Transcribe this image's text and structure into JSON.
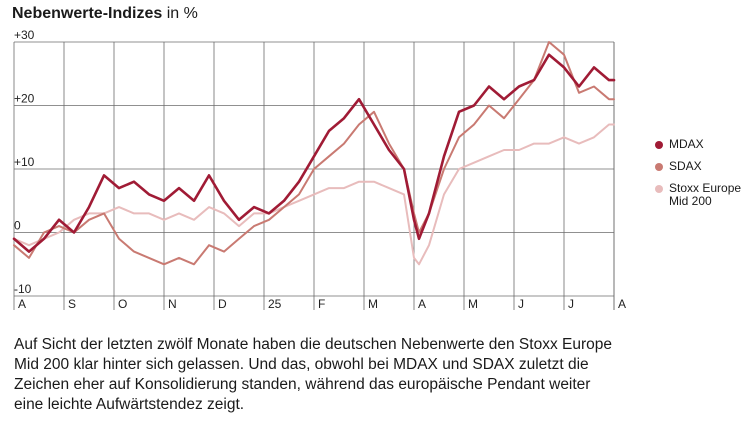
{
  "title": {
    "bold": "Nebenwerte-Indizes",
    "unit": "in %"
  },
  "caption": "Auf Sicht der letzten zwölf Monate haben die deutschen Nebenwerte den Stoxx Europe Mid 200 klar hinter sich gelassen. Und das, obwohl bei MDAX und SDAX zuletzt die Zeichen eher auf Konsolidierung standen, während das europäische Pendant weiter eine leichte Aufwärtstendez zeigt.",
  "chart_data": {
    "type": "line",
    "title": "Nebenwerte-Indizes in %",
    "xlabel": "",
    "ylabel": "",
    "x_range": [
      0,
      12
    ],
    "x_tick_labels": [
      "A",
      "S",
      "O",
      "N",
      "D",
      "25",
      "F",
      "M",
      "A",
      "M",
      "J",
      "J",
      "A"
    ],
    "ylim": [
      -10,
      30
    ],
    "y_ticks": [
      -10,
      0,
      10,
      20,
      30
    ],
    "y_tick_labels": [
      "-10",
      "0",
      "+10",
      "+20",
      "+30"
    ],
    "grid": true,
    "legend_position": "right",
    "series": [
      {
        "name": "MDAX",
        "color": "#a01b35",
        "x": [
          0,
          0.3,
          0.6,
          0.9,
          1.2,
          1.5,
          1.8,
          2.1,
          2.4,
          2.7,
          3.0,
          3.3,
          3.6,
          3.9,
          4.2,
          4.5,
          4.8,
          5.1,
          5.4,
          5.7,
          6.0,
          6.3,
          6.6,
          6.9,
          7.2,
          7.5,
          7.8,
          8.0,
          8.1,
          8.3,
          8.6,
          8.9,
          9.2,
          9.5,
          9.8,
          10.1,
          10.4,
          10.7,
          11.0,
          11.3,
          11.6,
          11.9,
          12.0
        ],
        "values": [
          -1,
          -3,
          -1,
          2,
          0,
          4,
          9,
          7,
          8,
          6,
          5,
          7,
          5,
          9,
          5,
          2,
          4,
          3,
          5,
          8,
          12,
          16,
          18,
          21,
          17,
          13,
          10,
          2,
          -1,
          3,
          12,
          19,
          20,
          23,
          21,
          23,
          24,
          28,
          26,
          23,
          26,
          24,
          24
        ]
      },
      {
        "name": "SDAX",
        "color": "#c97a72",
        "x": [
          0,
          0.3,
          0.6,
          0.9,
          1.2,
          1.5,
          1.8,
          2.1,
          2.4,
          2.7,
          3.0,
          3.3,
          3.6,
          3.9,
          4.2,
          4.5,
          4.8,
          5.1,
          5.4,
          5.7,
          6.0,
          6.3,
          6.6,
          6.9,
          7.2,
          7.5,
          7.8,
          8.0,
          8.1,
          8.3,
          8.6,
          8.9,
          9.2,
          9.5,
          9.8,
          10.1,
          10.4,
          10.7,
          11.0,
          11.3,
          11.6,
          11.9,
          12.0
        ],
        "values": [
          -2,
          -4,
          0,
          1,
          0,
          2,
          3,
          -1,
          -3,
          -4,
          -5,
          -4,
          -5,
          -2,
          -3,
          -1,
          1,
          2,
          4,
          6,
          10,
          12,
          14,
          17,
          19,
          14,
          10,
          3,
          0,
          3,
          10,
          15,
          17,
          20,
          18,
          21,
          24,
          30,
          28,
          22,
          23,
          21,
          21
        ]
      },
      {
        "name": "Stoxx Europe Mid 200",
        "color": "#e8bcbc",
        "x": [
          0,
          0.3,
          0.6,
          0.9,
          1.2,
          1.5,
          1.8,
          2.1,
          2.4,
          2.7,
          3.0,
          3.3,
          3.6,
          3.9,
          4.2,
          4.5,
          4.8,
          5.1,
          5.4,
          5.7,
          6.0,
          6.3,
          6.6,
          6.9,
          7.2,
          7.5,
          7.8,
          8.0,
          8.1,
          8.3,
          8.6,
          8.9,
          9.2,
          9.5,
          9.8,
          10.1,
          10.4,
          10.7,
          11.0,
          11.3,
          11.6,
          11.9,
          12.0
        ],
        "values": [
          -1,
          -2,
          -1,
          0,
          2,
          3,
          3,
          4,
          3,
          3,
          2,
          3,
          2,
          4,
          3,
          1,
          3,
          3,
          4,
          5,
          6,
          7,
          7,
          8,
          8,
          7,
          6,
          -4,
          -5,
          -2,
          6,
          10,
          11,
          12,
          13,
          13,
          14,
          14,
          15,
          14,
          15,
          17,
          17
        ]
      }
    ]
  }
}
